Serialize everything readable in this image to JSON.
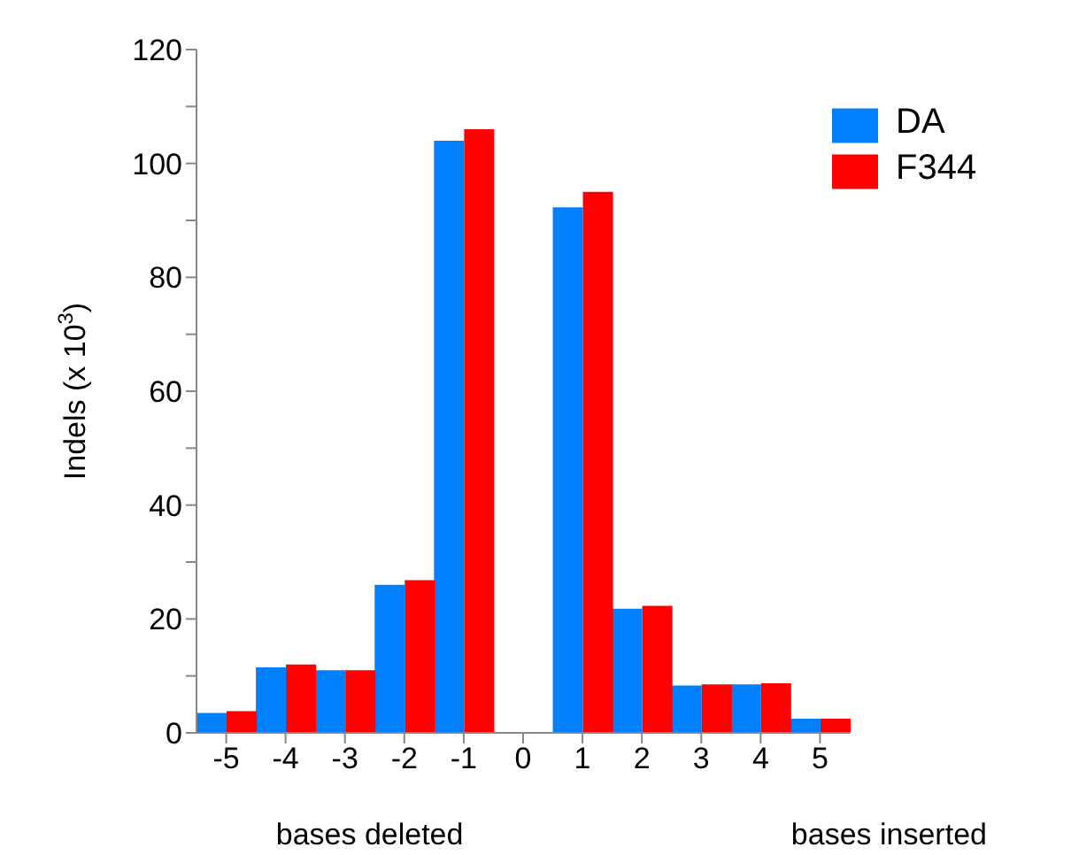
{
  "chart_data": {
    "type": "bar",
    "ylabel": "Indels (x 10$^{3}$)",
    "categories": [
      "-5",
      "-4",
      "-3",
      "-2",
      "-1",
      "0",
      "1",
      "2",
      "3",
      "4",
      "5"
    ],
    "series": [
      {
        "name": "DA",
        "color": "#0080ff",
        "values": [
          3.5,
          11.5,
          11,
          26,
          104,
          0,
          92.3,
          21.8,
          8.3,
          8.5,
          2.5
        ]
      },
      {
        "name": "F344",
        "color": "#ff0000",
        "values": [
          3.8,
          12,
          11,
          26.8,
          106,
          0,
          95,
          22.3,
          8.5,
          8.7,
          2.5
        ]
      }
    ],
    "ylim": [
      0,
      120
    ],
    "yticks": [
      0,
      {
        "value": 10,
        "label": null
      },
      20,
      {
        "value": 30,
        "label": null
      },
      40,
      {
        "value": 50,
        "label": null
      },
      60,
      {
        "value": 70,
        "label": null
      },
      80,
      {
        "value": 90,
        "label": null
      },
      100,
      {
        "value": 110,
        "label": null
      },
      120
    ],
    "annotations": [
      "bases deleted",
      "bases inserted"
    ],
    "legend": "top right",
    "grid": false
  }
}
